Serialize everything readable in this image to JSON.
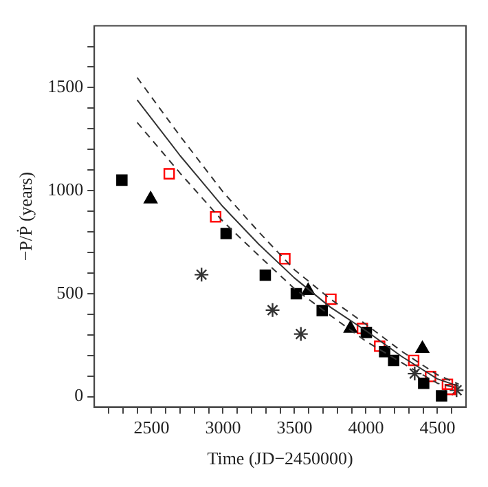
{
  "chart_data": {
    "type": "scatter",
    "xlabel": "Time (JD−2450000)",
    "ylabel": "−P/Ṗ (years)",
    "xlim": [
      2100,
      4700
    ],
    "ylim": [
      -50,
      1800
    ],
    "xticks": [
      {
        "value": 2200,
        "label": null
      },
      {
        "value": 2300,
        "label": null
      },
      {
        "value": 2400,
        "label": null
      },
      2500,
      {
        "value": 2600,
        "label": null
      },
      {
        "value": 2700,
        "label": null
      },
      {
        "value": 2800,
        "label": null
      },
      {
        "value": 2900,
        "label": null
      },
      3000,
      {
        "value": 3100,
        "label": null
      },
      {
        "value": 3200,
        "label": null
      },
      {
        "value": 3300,
        "label": null
      },
      {
        "value": 3400,
        "label": null
      },
      3500,
      {
        "value": 3600,
        "label": null
      },
      {
        "value": 3700,
        "label": null
      },
      {
        "value": 3800,
        "label": null
      },
      {
        "value": 3900,
        "label": null
      },
      4000,
      {
        "value": 4100,
        "label": null
      },
      {
        "value": 4200,
        "label": null
      },
      {
        "value": 4300,
        "label": null
      },
      {
        "value": 4400,
        "label": null
      },
      4500,
      {
        "value": 4600,
        "label": null
      }
    ],
    "yticks": [
      0,
      {
        "value": 100,
        "label": null
      },
      {
        "value": 200,
        "label": null
      },
      {
        "value": 300,
        "label": null
      },
      {
        "value": 400,
        "label": null
      },
      500,
      {
        "value": 600,
        "label": null
      },
      {
        "value": 700,
        "label": null
      },
      {
        "value": 800,
        "label": null
      },
      {
        "value": 900,
        "label": null
      },
      1000,
      {
        "value": 1100,
        "label": null
      },
      {
        "value": 1200,
        "label": null
      },
      {
        "value": 1300,
        "label": null
      },
      {
        "value": 1400,
        "label": null
      },
      1500,
      {
        "value": 1600,
        "label": null
      },
      {
        "value": 1700,
        "label": null
      }
    ],
    "grid": false,
    "legend": false,
    "series": [
      {
        "type": "line",
        "color": "#333333",
        "marker": "none",
        "line_style": "solid",
        "x": [
          2400,
          2700,
          3000,
          3250,
          3500,
          3750,
          4000,
          4250,
          4500,
          4650
        ],
        "values": [
          1440,
          1170,
          922,
          740,
          576,
          435,
          320,
          195,
          86,
          50
        ]
      },
      {
        "type": "line",
        "color": "#333333",
        "marker": "none",
        "line_style": "dashed",
        "x": [
          2400,
          2700,
          3000,
          3250,
          3500,
          3750,
          4000,
          4250,
          4500,
          4650
        ],
        "values": [
          1549,
          1265,
          994,
          800,
          616,
          475,
          351,
          220,
          106,
          60
        ]
      },
      {
        "type": "line",
        "color": "#333333",
        "marker": "none",
        "line_style": "dashed",
        "x": [
          2400,
          2700,
          3000,
          3250,
          3500,
          3750,
          4000,
          4250,
          4500,
          4650
        ],
        "values": [
          1331,
          1085,
          851,
          685,
          524,
          395,
          269,
          165,
          65,
          40
        ]
      },
      {
        "type": "scatter",
        "color": "#000000",
        "marker": "square",
        "x": [
          2293,
          3022,
          3296,
          3513,
          3694,
          4003,
          4131,
          4194,
          4404,
          4529
        ],
        "values": [
          1051,
          792,
          590,
          500,
          418,
          312,
          218,
          176,
          65,
          4
        ]
      },
      {
        "type": "scatter",
        "color": "#000000",
        "marker": "triangle",
        "x": [
          2494,
          3596,
          3892,
          4395
        ],
        "values": [
          959,
          514,
          331,
          233
        ]
      },
      {
        "type": "scatter",
        "color": "#ff0000",
        "marker": "square",
        "x": [
          2624,
          2949,
          3433,
          3755,
          3975,
          4096,
          4334,
          4452,
          4570,
          4590
        ],
        "values": [
          1082,
          873,
          669,
          473,
          331,
          245,
          176,
          98,
          60,
          35
        ]
      },
      {
        "type": "scatter",
        "color": "#333333",
        "marker": "cross",
        "x": [
          2850,
          3347,
          3545,
          4341,
          4634
        ],
        "values": [
          592,
          420,
          304,
          112,
          31
        ]
      }
    ]
  }
}
